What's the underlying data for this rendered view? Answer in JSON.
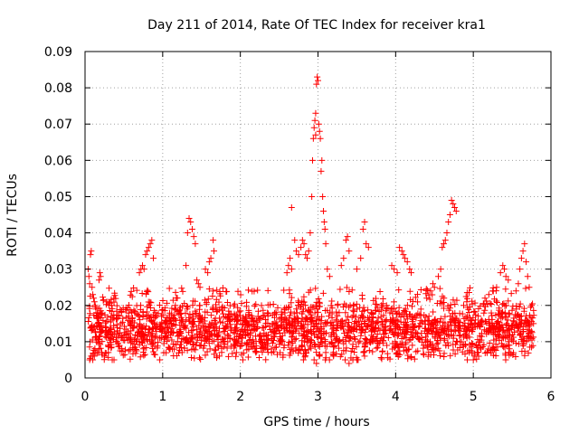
{
  "chart_data": {
    "type": "scatter",
    "title": "Day 211 of 2014, Rate Of TEC Index for receiver kra1",
    "xlabel": "GPS time / hours",
    "ylabel": "ROTI / TECUs",
    "xlim": [
      0,
      6
    ],
    "ylim": [
      0,
      0.09
    ],
    "xticks": [
      0,
      1,
      2,
      3,
      4,
      5,
      6
    ],
    "xtick_labels": [
      "0",
      "1",
      "2",
      "3",
      "4",
      "5",
      "6"
    ],
    "yticks": [
      0,
      0.01,
      0.02,
      0.03,
      0.04,
      0.05,
      0.06,
      0.07,
      0.08,
      0.09
    ],
    "ytick_labels": [
      "0",
      "0.01",
      "0.02",
      "0.03",
      "0.04",
      "0.05",
      "0.06",
      "0.07",
      "0.08",
      "0.09"
    ],
    "grid": true,
    "marker": "+",
    "marker_color": "#ff0000",
    "series": [
      {
        "name": "kra1",
        "points": [
          [
            0.04,
            0.03
          ],
          [
            0.05,
            0.028
          ],
          [
            0.06,
            0.026
          ],
          [
            0.07,
            0.034
          ],
          [
            0.08,
            0.035
          ],
          [
            0.09,
            0.025
          ],
          [
            0.1,
            0.023
          ],
          [
            0.11,
            0.022
          ],
          [
            0.12,
            0.021
          ],
          [
            0.13,
            0.02
          ],
          [
            0.14,
            0.019
          ],
          [
            0.16,
            0.018
          ],
          [
            0.18,
            0.027
          ],
          [
            0.19,
            0.029
          ],
          [
            0.2,
            0.028
          ],
          [
            0.06,
            0.005
          ],
          [
            0.08,
            0.006
          ],
          [
            0.1,
            0.005
          ],
          [
            0.12,
            0.006
          ],
          [
            0.14,
            0.007
          ],
          [
            0.18,
            0.008
          ],
          [
            0.25,
            0.006
          ],
          [
            0.3,
            0.007
          ],
          [
            0.35,
            0.005
          ],
          [
            0.7,
            0.029
          ],
          [
            0.72,
            0.03
          ],
          [
            0.74,
            0.031
          ],
          [
            0.76,
            0.03
          ],
          [
            0.78,
            0.034
          ],
          [
            0.8,
            0.035
          ],
          [
            0.82,
            0.036
          ],
          [
            0.84,
            0.037
          ],
          [
            0.86,
            0.038
          ],
          [
            0.88,
            0.033
          ],
          [
            1.3,
            0.031
          ],
          [
            1.32,
            0.04
          ],
          [
            1.34,
            0.044
          ],
          [
            1.36,
            0.043
          ],
          [
            1.38,
            0.041
          ],
          [
            1.4,
            0.039
          ],
          [
            1.42,
            0.037
          ],
          [
            1.44,
            0.027
          ],
          [
            1.46,
            0.026
          ],
          [
            1.48,
            0.025
          ],
          [
            1.55,
            0.03
          ],
          [
            1.58,
            0.029
          ],
          [
            1.6,
            0.032
          ],
          [
            1.62,
            0.033
          ],
          [
            1.65,
            0.038
          ],
          [
            1.66,
            0.035
          ],
          [
            1.25,
            0.007
          ],
          [
            1.4,
            0.008
          ],
          [
            1.7,
            0.006
          ],
          [
            1.95,
            0.007
          ],
          [
            2.2,
            0.007
          ],
          [
            2.4,
            0.008
          ],
          [
            2.6,
            0.029
          ],
          [
            2.62,
            0.031
          ],
          [
            2.64,
            0.033
          ],
          [
            2.66,
            0.03
          ],
          [
            2.66,
            0.047
          ],
          [
            2.7,
            0.038
          ],
          [
            2.72,
            0.035
          ],
          [
            2.75,
            0.034
          ],
          [
            2.78,
            0.036
          ],
          [
            2.8,
            0.038
          ],
          [
            2.82,
            0.037
          ],
          [
            2.84,
            0.034
          ],
          [
            2.86,
            0.033
          ],
          [
            2.88,
            0.035
          ],
          [
            2.9,
            0.04
          ],
          [
            2.92,
            0.05
          ],
          [
            2.93,
            0.06
          ],
          [
            2.94,
            0.066
          ],
          [
            2.95,
            0.069
          ],
          [
            2.96,
            0.071
          ],
          [
            2.97,
            0.073
          ],
          [
            2.97,
            0.067
          ],
          [
            2.98,
            0.081
          ],
          [
            2.99,
            0.083
          ],
          [
            3.0,
            0.082
          ],
          [
            3.01,
            0.07
          ],
          [
            3.02,
            0.068
          ],
          [
            3.03,
            0.066
          ],
          [
            3.04,
            0.057
          ],
          [
            3.05,
            0.06
          ],
          [
            3.06,
            0.05
          ],
          [
            3.07,
            0.046
          ],
          [
            3.08,
            0.043
          ],
          [
            3.09,
            0.041
          ],
          [
            3.1,
            0.037
          ],
          [
            3.12,
            0.03
          ],
          [
            3.15,
            0.028
          ],
          [
            2.95,
            0.005
          ],
          [
            2.98,
            0.004
          ],
          [
            3.02,
            0.006
          ],
          [
            3.1,
            0.007
          ],
          [
            3.2,
            0.006
          ],
          [
            3.35,
            0.005
          ],
          [
            3.4,
            0.004
          ],
          [
            3.5,
            0.005
          ],
          [
            3.6,
            0.006
          ],
          [
            3.3,
            0.031
          ],
          [
            3.33,
            0.033
          ],
          [
            3.36,
            0.038
          ],
          [
            3.38,
            0.039
          ],
          [
            3.4,
            0.035
          ],
          [
            3.5,
            0.03
          ],
          [
            3.55,
            0.033
          ],
          [
            3.58,
            0.041
          ],
          [
            3.6,
            0.043
          ],
          [
            3.62,
            0.037
          ],
          [
            3.65,
            0.036
          ],
          [
            3.95,
            0.031
          ],
          [
            3.98,
            0.03
          ],
          [
            4.02,
            0.029
          ],
          [
            4.05,
            0.036
          ],
          [
            4.08,
            0.035
          ],
          [
            4.1,
            0.034
          ],
          [
            4.12,
            0.033
          ],
          [
            4.15,
            0.032
          ],
          [
            4.18,
            0.03
          ],
          [
            4.2,
            0.029
          ],
          [
            4.4,
            0.022
          ],
          [
            4.45,
            0.024
          ],
          [
            4.48,
            0.026
          ],
          [
            4.5,
            0.025
          ],
          [
            4.55,
            0.028
          ],
          [
            4.58,
            0.03
          ],
          [
            4.6,
            0.036
          ],
          [
            4.62,
            0.037
          ],
          [
            4.64,
            0.038
          ],
          [
            4.66,
            0.04
          ],
          [
            4.68,
            0.043
          ],
          [
            4.7,
            0.045
          ],
          [
            4.72,
            0.049
          ],
          [
            4.74,
            0.048
          ],
          [
            4.76,
            0.047
          ],
          [
            4.78,
            0.046
          ],
          [
            4.9,
            0.009
          ],
          [
            4.95,
            0.007
          ],
          [
            5.0,
            0.005
          ],
          [
            5.02,
            0.006
          ],
          [
            5.05,
            0.007
          ],
          [
            5.1,
            0.008
          ],
          [
            5.15,
            0.022
          ],
          [
            5.2,
            0.023
          ],
          [
            5.25,
            0.024
          ],
          [
            5.3,
            0.025
          ],
          [
            5.35,
            0.029
          ],
          [
            5.38,
            0.031
          ],
          [
            5.4,
            0.03
          ],
          [
            5.42,
            0.028
          ],
          [
            5.45,
            0.027
          ],
          [
            5.55,
            0.024
          ],
          [
            5.58,
            0.026
          ],
          [
            5.6,
            0.03
          ],
          [
            5.62,
            0.033
          ],
          [
            5.64,
            0.035
          ],
          [
            5.66,
            0.037
          ],
          [
            5.68,
            0.032
          ],
          [
            5.7,
            0.028
          ],
          [
            5.72,
            0.025
          ],
          [
            5.75,
            0.02
          ]
        ],
        "dense_band": {
          "x_range": [
            0.04,
            5.78
          ],
          "y_range": [
            0.005,
            0.025
          ],
          "typical": 0.013,
          "count": 2200,
          "seed": 211
        }
      }
    ]
  }
}
